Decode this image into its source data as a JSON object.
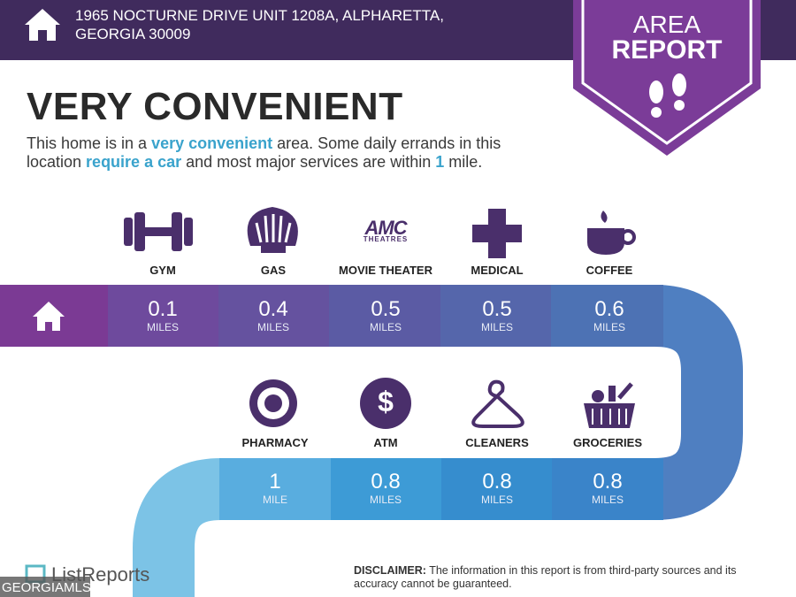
{
  "header": {
    "address_lines": [
      "1965 NOCTURNE DRIVE UNIT 1208A, ALPHARETTA,",
      "GEORGIA 30009"
    ]
  },
  "badge": {
    "lines": [
      "AREA",
      "REPORT"
    ]
  },
  "heading": "VERY CONVENIENT",
  "description": [
    [
      {
        "text": "This home is in a ",
        "highlight": false
      },
      {
        "text": "very convenient",
        "highlight": true
      },
      {
        "text": " area. Some daily errands in this",
        "highlight": false
      }
    ],
    [
      {
        "text": "location ",
        "highlight": false
      },
      {
        "text": "require a car",
        "highlight": true
      },
      {
        "text": " and most major services are within ",
        "highlight": false
      },
      {
        "text": "1",
        "highlight": true
      },
      {
        "text": " mile.",
        "highlight": false
      }
    ]
  ],
  "amc_logo": {
    "brand": "AMC",
    "sub": "THEATRES"
  },
  "rows": [
    [
      {
        "name": "GYM",
        "distance": 0.1,
        "unit": "MILES"
      },
      {
        "name": "GAS",
        "distance": 0.4,
        "unit": "MILES"
      },
      {
        "name": "MOVIE THEATER",
        "distance": 0.5,
        "unit": "MILES"
      },
      {
        "name": "MEDICAL",
        "distance": 0.5,
        "unit": "MILES"
      },
      {
        "name": "COFFEE",
        "distance": 0.6,
        "unit": "MILES"
      }
    ],
    [
      {
        "name": "PHARMACY",
        "distance": 1,
        "unit": "MILE"
      },
      {
        "name": "ATM",
        "distance": 0.8,
        "unit": "MILES"
      },
      {
        "name": "CLEANERS",
        "distance": 0.8,
        "unit": "MILES"
      },
      {
        "name": "GROCERIES",
        "distance": 0.8,
        "unit": "MILES"
      }
    ]
  ],
  "footer": {
    "brand": "ListReports",
    "disclaimer_label": "DISCLAIMER:",
    "disclaimer": "The information in this report is from third-party sources and its accuracy cannot be guaranteed.",
    "watermark": "GEORGIAMLS"
  }
}
